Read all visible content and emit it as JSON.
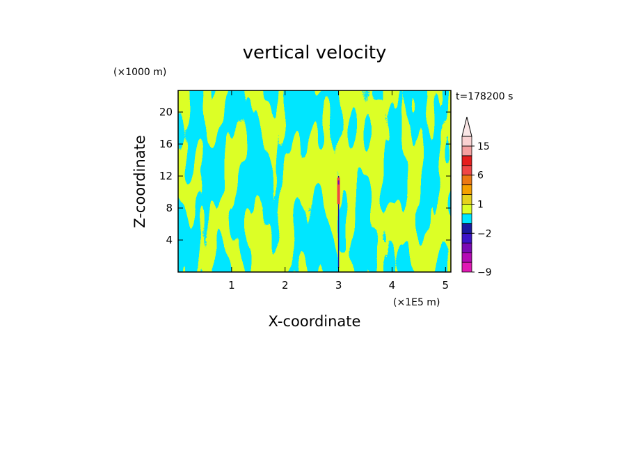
{
  "chart_data": {
    "type": "heatmap",
    "title": "vertical velocity",
    "xlabel": "X-coordinate",
    "ylabel": "Z-coordinate",
    "x_scale_label": "(×1E5 m)",
    "y_scale_label": "(×1000 m)",
    "time_label": "t=178200 s",
    "xlim": [
      0,
      5.1
    ],
    "ylim": [
      0,
      22.7
    ],
    "x_ticks": [
      1,
      2,
      3,
      4,
      5
    ],
    "y_ticks": [
      4,
      8,
      12,
      16,
      20
    ],
    "colorbar": {
      "levels": [
        -9,
        -7,
        -5,
        -3,
        -2,
        -1,
        0,
        1,
        2,
        4,
        6,
        8,
        12,
        15,
        20
      ],
      "level_colors": [
        "#e01ab4",
        "#b40ab4",
        "#7a0ab4",
        "#3c14c8",
        "#1a1aa0",
        "#00e6ff",
        "#dcff28",
        "#e6d21e",
        "#f5a000",
        "#ec7814",
        "#f04646",
        "#e61e1e",
        "#f5a0a0",
        "#fad2d2"
      ],
      "labels": [
        {
          "value": -9,
          "text": "−9"
        },
        {
          "value": -2,
          "text": "−2"
        },
        {
          "value": 1,
          "text": "1"
        },
        {
          "value": 6,
          "text": "6"
        },
        {
          "value": 15,
          "text": "15"
        }
      ],
      "extend_max_color": "#fae6e6"
    },
    "field_colors": {
      "negative": "#00e6ff",
      "positive": "#dcff28",
      "strong_up": "#f04646",
      "strong_down": "#7a0ab4"
    },
    "updraft_column": {
      "x": 3.0,
      "z_range": [
        0.5,
        12.0
      ],
      "core_z_range": [
        8.5,
        11.8
      ]
    }
  }
}
